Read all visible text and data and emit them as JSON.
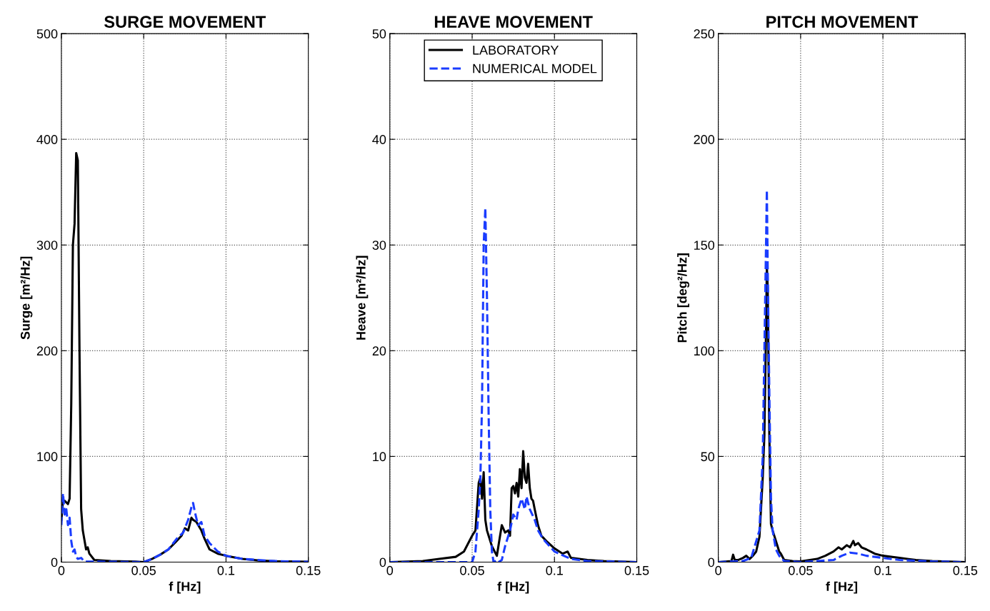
{
  "chart_data": [
    {
      "type": "line",
      "title": "SURGE MOVEMENT",
      "xlabel": "f [Hz]",
      "ylabel": "Surge [m²/Hz]",
      "xlim": [
        0,
        0.15
      ],
      "xticks": [
        0,
        0.05,
        0.1,
        0.15
      ],
      "ylim": [
        0,
        500
      ],
      "yticks": [
        0,
        100,
        200,
        300,
        400,
        500
      ],
      "grid": true,
      "series": [
        {
          "color": "#000000",
          "line_style": "solid",
          "x": [
            0,
            0.001,
            0.002,
            0.004,
            0.005,
            0.006,
            0.007,
            0.008,
            0.009,
            0.01,
            0.011,
            0.012,
            0.013,
            0.015,
            0.016,
            0.017,
            0.02,
            0.03,
            0.045,
            0.05,
            0.055,
            0.06,
            0.065,
            0.07,
            0.073,
            0.075,
            0.077,
            0.079,
            0.08,
            0.082,
            0.085,
            0.087,
            0.09,
            0.095,
            0.1,
            0.11,
            0.12,
            0.13,
            0.15
          ],
          "values": [
            40,
            58,
            58,
            55,
            60,
            150,
            300,
            320,
            387,
            380,
            200,
            50,
            30,
            12,
            14,
            8,
            2,
            1,
            0.5,
            0,
            3,
            7,
            12,
            20,
            25,
            32,
            30,
            42,
            40,
            38,
            30,
            22,
            12,
            8,
            6,
            3,
            1.5,
            0.8,
            0.3
          ]
        },
        {
          "color": "#1a3cff",
          "line_style": "dashed",
          "x": [
            0,
            0.0005,
            0.001,
            0.002,
            0.003,
            0.004,
            0.005,
            0.006,
            0.007,
            0.008,
            0.009,
            0.01,
            0.012,
            0.014,
            0.02,
            0.05,
            0.055,
            0.06,
            0.065,
            0.07,
            0.074,
            0.077,
            0.079,
            0.08,
            0.081,
            0.083,
            0.085,
            0.087,
            0.09,
            0.095,
            0.1,
            0.11,
            0.13,
            0.15
          ],
          "values": [
            35,
            55,
            65,
            45,
            50,
            35,
            42,
            20,
            10,
            12,
            5,
            3,
            4,
            0.5,
            0.5,
            0,
            3,
            7,
            12,
            22,
            28,
            40,
            52,
            56,
            48,
            35,
            38,
            25,
            18,
            10,
            6,
            3,
            1,
            0.3
          ]
        }
      ]
    },
    {
      "type": "line",
      "title": "HEAVE MOVEMENT",
      "xlabel": "f [Hz]",
      "ylabel": "Heave [m²/Hz]",
      "xlim": [
        0,
        0.15
      ],
      "xticks": [
        0,
        0.05,
        0.1,
        0.15
      ],
      "ylim": [
        0,
        50
      ],
      "yticks": [
        0,
        10,
        20,
        30,
        40,
        50
      ],
      "grid": true,
      "legend": "top",
      "series": [
        {
          "name": "LABORATORY",
          "color": "#000000",
          "line_style": "solid",
          "x": [
            0,
            0.02,
            0.03,
            0.04,
            0.045,
            0.05,
            0.052,
            0.054,
            0.055,
            0.056,
            0.057,
            0.058,
            0.059,
            0.06,
            0.062,
            0.063,
            0.065,
            0.068,
            0.07,
            0.072,
            0.073,
            0.074,
            0.075,
            0.076,
            0.077,
            0.078,
            0.079,
            0.08,
            0.081,
            0.082,
            0.083,
            0.084,
            0.085,
            0.086,
            0.087,
            0.088,
            0.09,
            0.092,
            0.095,
            0.1,
            0.105,
            0.108,
            0.11,
            0.12,
            0.13,
            0.15
          ],
          "values": [
            0,
            0.1,
            0.3,
            0.5,
            1,
            2.5,
            3,
            7.5,
            8,
            6,
            8.5,
            4,
            3,
            2.5,
            1.5,
            1.2,
            0.6,
            3.5,
            2.8,
            3,
            2.5,
            7,
            7.2,
            6.5,
            7.5,
            6.2,
            8.8,
            7,
            10.5,
            8,
            7.5,
            9.3,
            7,
            6,
            5.8,
            5,
            3.5,
            2.5,
            2,
            1.3,
            0.8,
            1,
            0.4,
            0.2,
            0.1,
            0
          ]
        },
        {
          "name": "NUMERICAL MODEL",
          "color": "#1a3cff",
          "line_style": "dashed",
          "x": [
            0,
            0.05,
            0.052,
            0.054,
            0.055,
            0.056,
            0.057,
            0.058,
            0.059,
            0.06,
            0.061,
            0.062,
            0.063,
            0.065,
            0.066,
            0.068,
            0.07,
            0.073,
            0.075,
            0.077,
            0.078,
            0.08,
            0.082,
            0.083,
            0.085,
            0.088,
            0.09,
            0.093,
            0.1,
            0.11,
            0.12,
            0.15
          ],
          "values": [
            0,
            0,
            1,
            5,
            8,
            15,
            30,
            33.5,
            25,
            14,
            5,
            1,
            0,
            0.2,
            0,
            0.2,
            1.5,
            3,
            4.5,
            4,
            5,
            6,
            5,
            6.2,
            5,
            4,
            3,
            2.2,
            1,
            0.3,
            0.1,
            0
          ]
        }
      ]
    },
    {
      "type": "line",
      "title": "PITCH MOVEMENT",
      "xlabel": "f [Hz]",
      "ylabel": "Pitch [deg²/Hz]",
      "xlim": [
        0,
        0.15
      ],
      "xticks": [
        0,
        0.05,
        0.1,
        0.15
      ],
      "ylim": [
        0,
        250
      ],
      "yticks": [
        0,
        50,
        100,
        150,
        200,
        250
      ],
      "grid": true,
      "series": [
        {
          "color": "#000000",
          "line_style": "solid",
          "x": [
            0,
            0.008,
            0.009,
            0.01,
            0.012,
            0.015,
            0.017,
            0.019,
            0.021,
            0.023,
            0.025,
            0.027,
            0.028,
            0.029,
            0.0295,
            0.03,
            0.031,
            0.032,
            0.033,
            0.035,
            0.037,
            0.038,
            0.04,
            0.045,
            0.05,
            0.06,
            0.065,
            0.07,
            0.073,
            0.075,
            0.078,
            0.08,
            0.082,
            0.083,
            0.085,
            0.087,
            0.09,
            0.095,
            0.1,
            0.11,
            0.12,
            0.13,
            0.15
          ],
          "values": [
            0,
            0.5,
            3.5,
            1,
            1,
            2,
            3,
            1.5,
            3,
            5,
            12,
            40,
            60,
            110,
            140,
            130,
            60,
            18,
            15,
            10,
            5,
            4,
            1,
            0.5,
            0.3,
            1.5,
            3,
            5,
            7,
            6,
            8,
            7,
            10,
            8,
            9,
            7,
            6,
            4,
            3,
            2,
            1,
            0.5,
            0
          ]
        },
        {
          "color": "#1a3cff",
          "line_style": "dashed",
          "x": [
            0,
            0.015,
            0.02,
            0.025,
            0.027,
            0.028,
            0.029,
            0.0295,
            0.03,
            0.031,
            0.032,
            0.033,
            0.035,
            0.037,
            0.04,
            0.05,
            0.07,
            0.075,
            0.08,
            0.085,
            0.09,
            0.1,
            0.11,
            0.13,
            0.15
          ],
          "values": [
            0,
            0.5,
            2,
            15,
            50,
            100,
            150,
            176,
            140,
            80,
            30,
            15,
            6,
            3,
            0.5,
            0,
            1,
            3,
            4.5,
            4,
            3,
            2,
            1,
            0.3,
            0
          ]
        }
      ]
    }
  ]
}
